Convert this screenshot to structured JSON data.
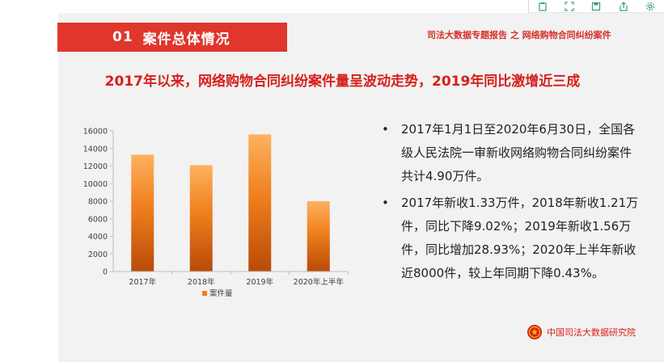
{
  "toolbar": {
    "items": [
      "clipboard-icon",
      "expand-icon",
      "save-icon",
      "export-icon",
      "settings-icon"
    ]
  },
  "section": {
    "number": "01",
    "title": "案件总体情况"
  },
  "report_tag": "司法大数据专题报告 之 网络购物合同纠纷案件",
  "headline": "2017年以来，网络购物合同纠纷案件量呈波动走势，2019年同比激增近三成",
  "chart_data": {
    "type": "bar",
    "categories": [
      "2017年",
      "2018年",
      "2019年",
      "2020年上半年"
    ],
    "series": [
      {
        "name": "案件量",
        "values": [
          13300,
          12100,
          15600,
          8000
        ]
      }
    ],
    "ylim": [
      0,
      16000
    ],
    "yticks": [
      0,
      2000,
      4000,
      6000,
      8000,
      10000,
      12000,
      14000,
      16000
    ],
    "legend": "bottom",
    "grid": false,
    "colors": {
      "bar_top": "#fdb25f",
      "bar_bottom": "#b84a08"
    }
  },
  "bullets": [
    "2017年1月1日至2020年6月30日，全国各级人民法院一审新收网络购物合同纠纷案件共计4.90万件。",
    "2017年新收1.33万件，2018年新收1.21万件，同比下降9.02%；2019年新收1.56万件，同比增加28.93%；2020年上半年新收近8000件，较上年同期下降0.43%。"
  ],
  "bullet_symbol": "•",
  "footer": {
    "label": "中国司法大数据研究院",
    "emblem_icon": "national-emblem-icon"
  },
  "colors": {
    "accent": "#d6201b",
    "banner": "#e0362b",
    "background": "#f2f2f2",
    "toolbar_icon": "#3a9f6e"
  }
}
